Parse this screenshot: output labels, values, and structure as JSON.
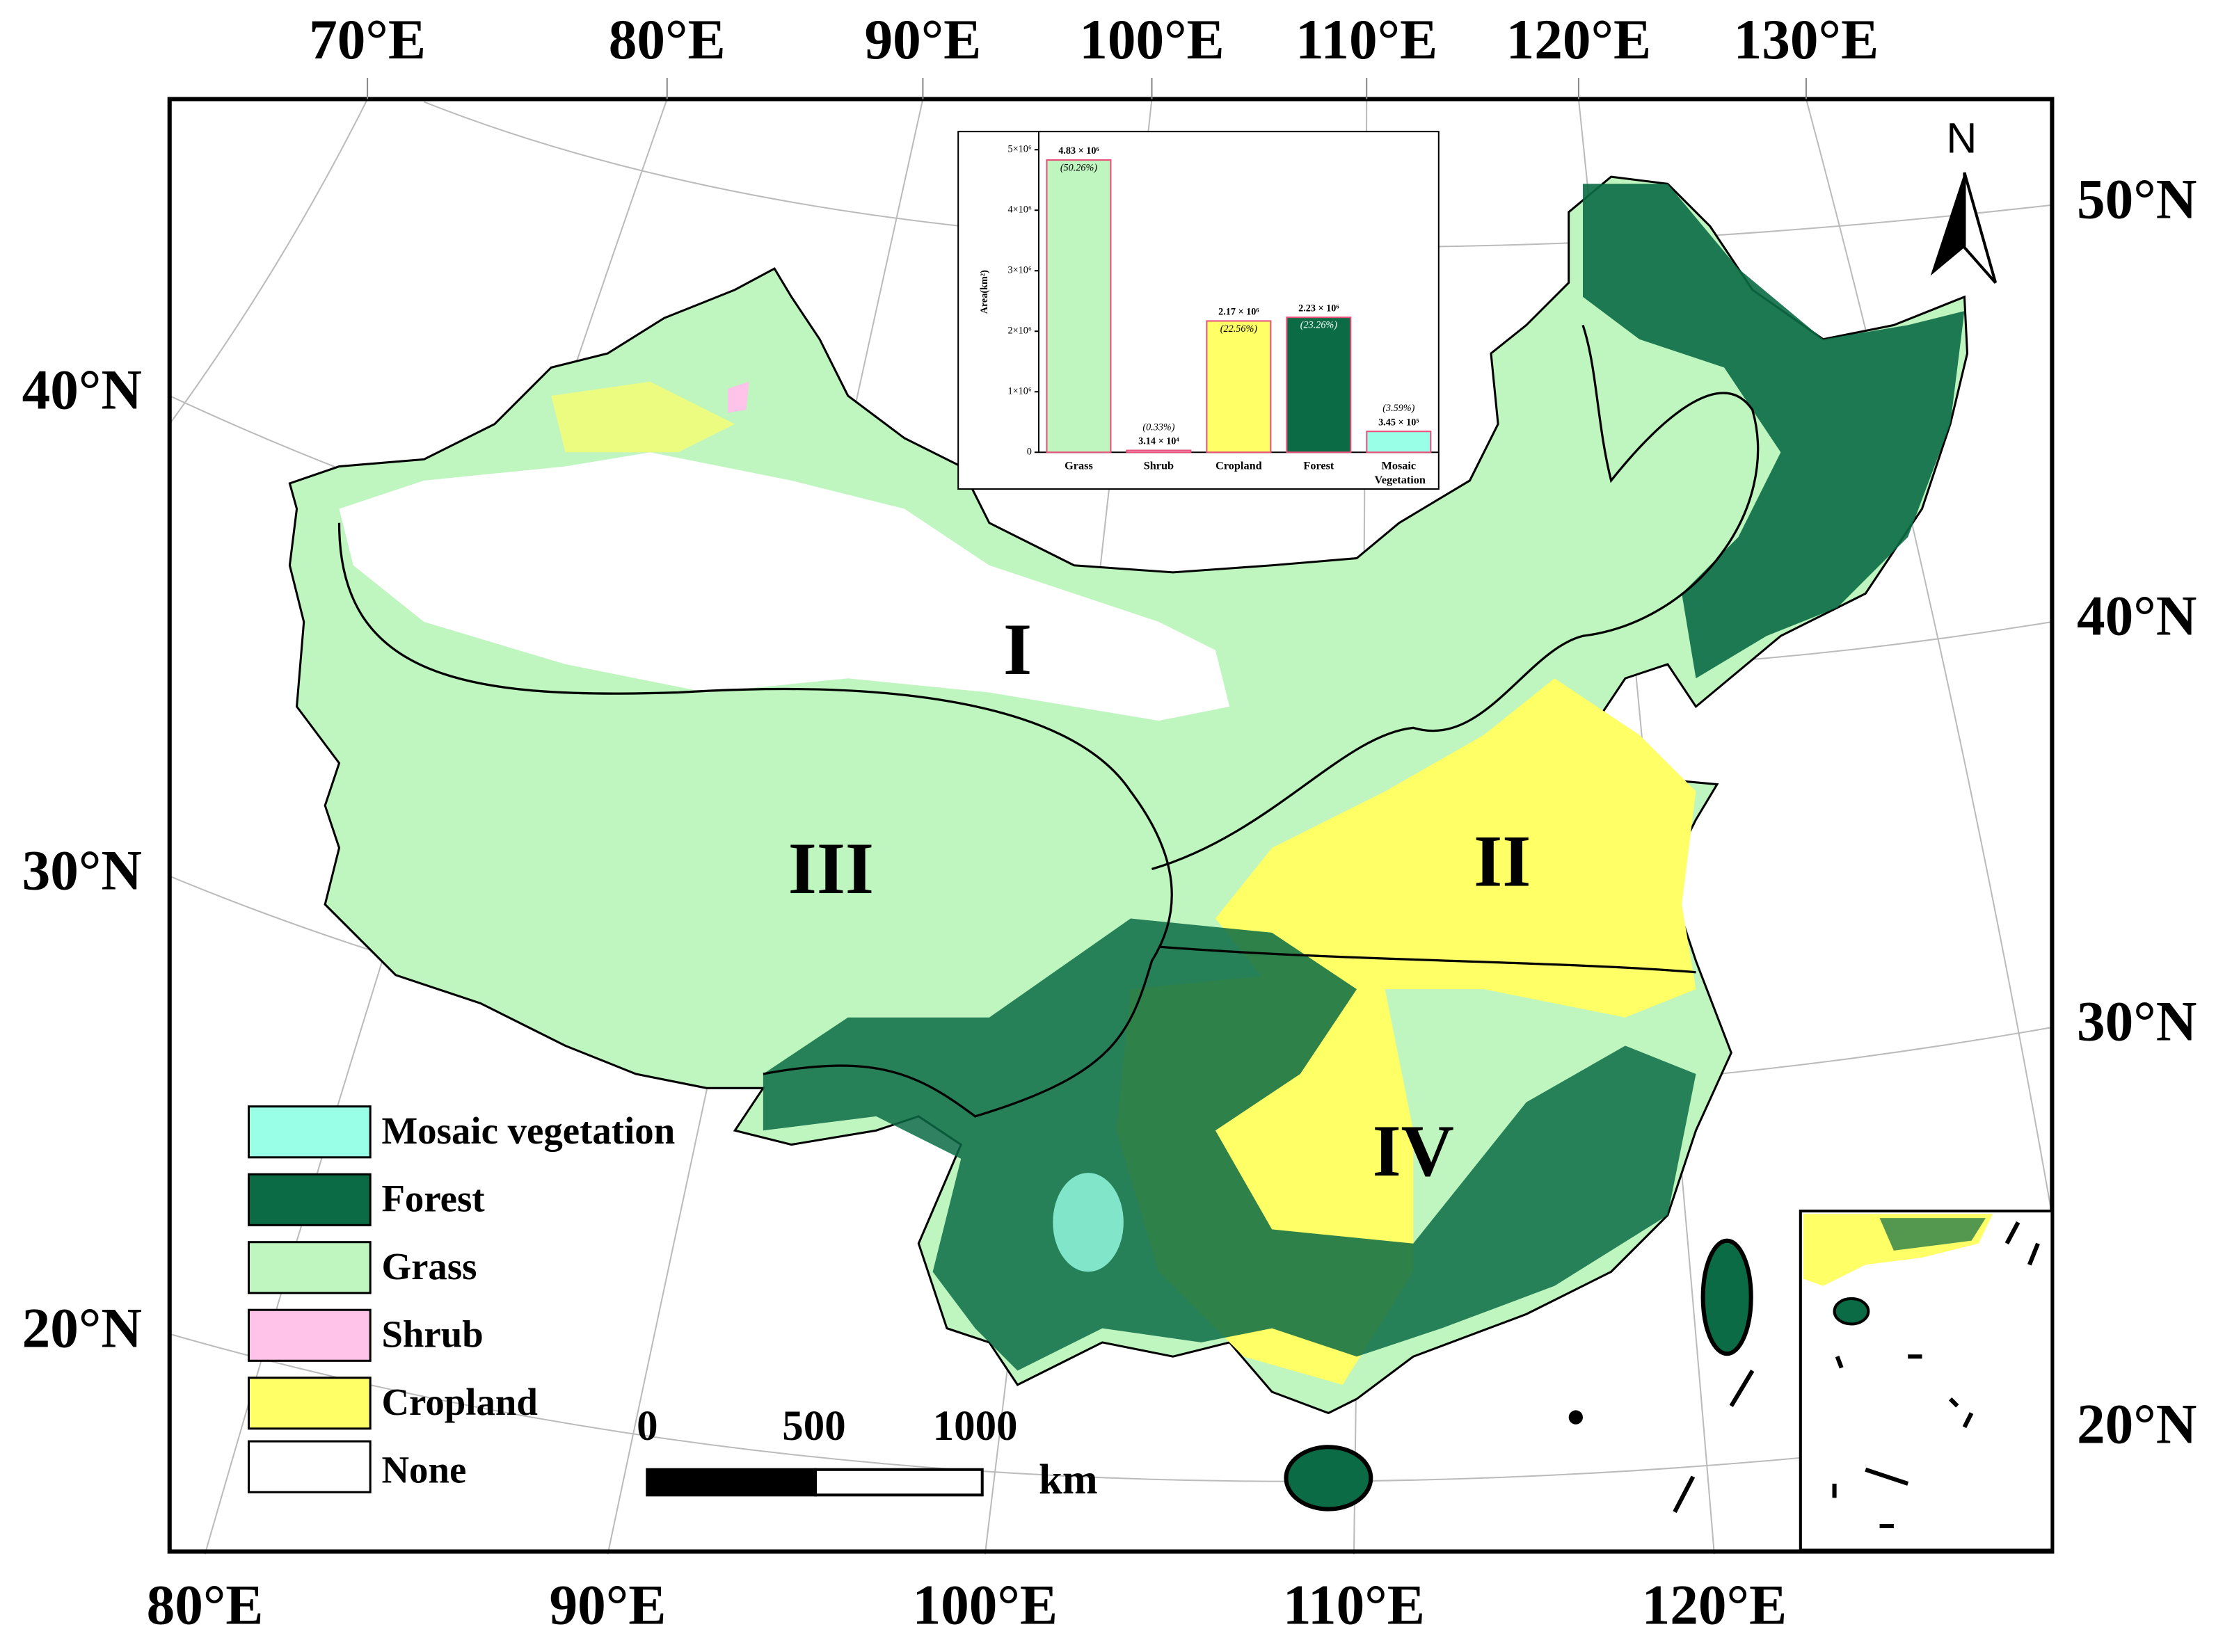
{
  "map": {
    "top_longitude_labels": [
      "70°E",
      "80°E",
      "90°E",
      "100°E",
      "110°E",
      "120°E",
      "130°E"
    ],
    "bottom_longitude_labels": [
      "80°E",
      "90°E",
      "100°E",
      "110°E",
      "120°E"
    ],
    "left_latitude_labels": [
      "40°N",
      "30°N",
      "20°N"
    ],
    "right_latitude_labels": [
      "50°N",
      "40°N",
      "30°N",
      "20°N"
    ],
    "north_label": "N",
    "region_labels": [
      "I",
      "II",
      "III",
      "IV"
    ],
    "legend": [
      {
        "label": "Mosaic vegetation",
        "color": "#99ffe6"
      },
      {
        "label": "Forest",
        "color": "#0b6b45"
      },
      {
        "label": "Grass",
        "color": "#bff5bf"
      },
      {
        "label": "Shrub",
        "color": "#ffc2e8"
      },
      {
        "label": "Cropland",
        "color": "#ffff66"
      },
      {
        "label": "None",
        "color": "#ffffff"
      }
    ],
    "scale_bar": {
      "labels": [
        0,
        500,
        1000
      ],
      "unit": "km"
    }
  },
  "chart_data": {
    "type": "bar",
    "y_label": "Area(km²)",
    "categories": [
      "Grass",
      "Shrub",
      "Cropland",
      "Forest",
      "Mosaic Vegetation"
    ],
    "values": [
      4830000,
      31400,
      2170000,
      2230000,
      345000
    ],
    "value_labels": [
      "4.83 × 10⁶",
      "3.14 × 10⁴",
      "2.17 × 10⁶",
      "2.23 × 10⁶",
      "3.45 × 10⁵"
    ],
    "percent_labels": [
      "(50.26%)",
      "(0.33%)",
      "(22.56%)",
      "(23.26%)",
      "(3.59%)"
    ],
    "colors": [
      "#bff5bf",
      "#ffc2e8",
      "#ffff66",
      "#0b6b45",
      "#99ffe6"
    ],
    "edgecolor": "#e8507a",
    "ylim": [
      0,
      5300000
    ],
    "yticks": [
      0,
      {
        "value": 1000000,
        "label": "1×10⁶"
      },
      {
        "value": 2000000,
        "label": "2×10⁶"
      },
      {
        "value": 3000000,
        "label": "3×10⁶"
      },
      {
        "value": 4000000,
        "label": "4×10⁶"
      },
      {
        "value": 5000000,
        "label": "5×10⁶"
      }
    ]
  }
}
